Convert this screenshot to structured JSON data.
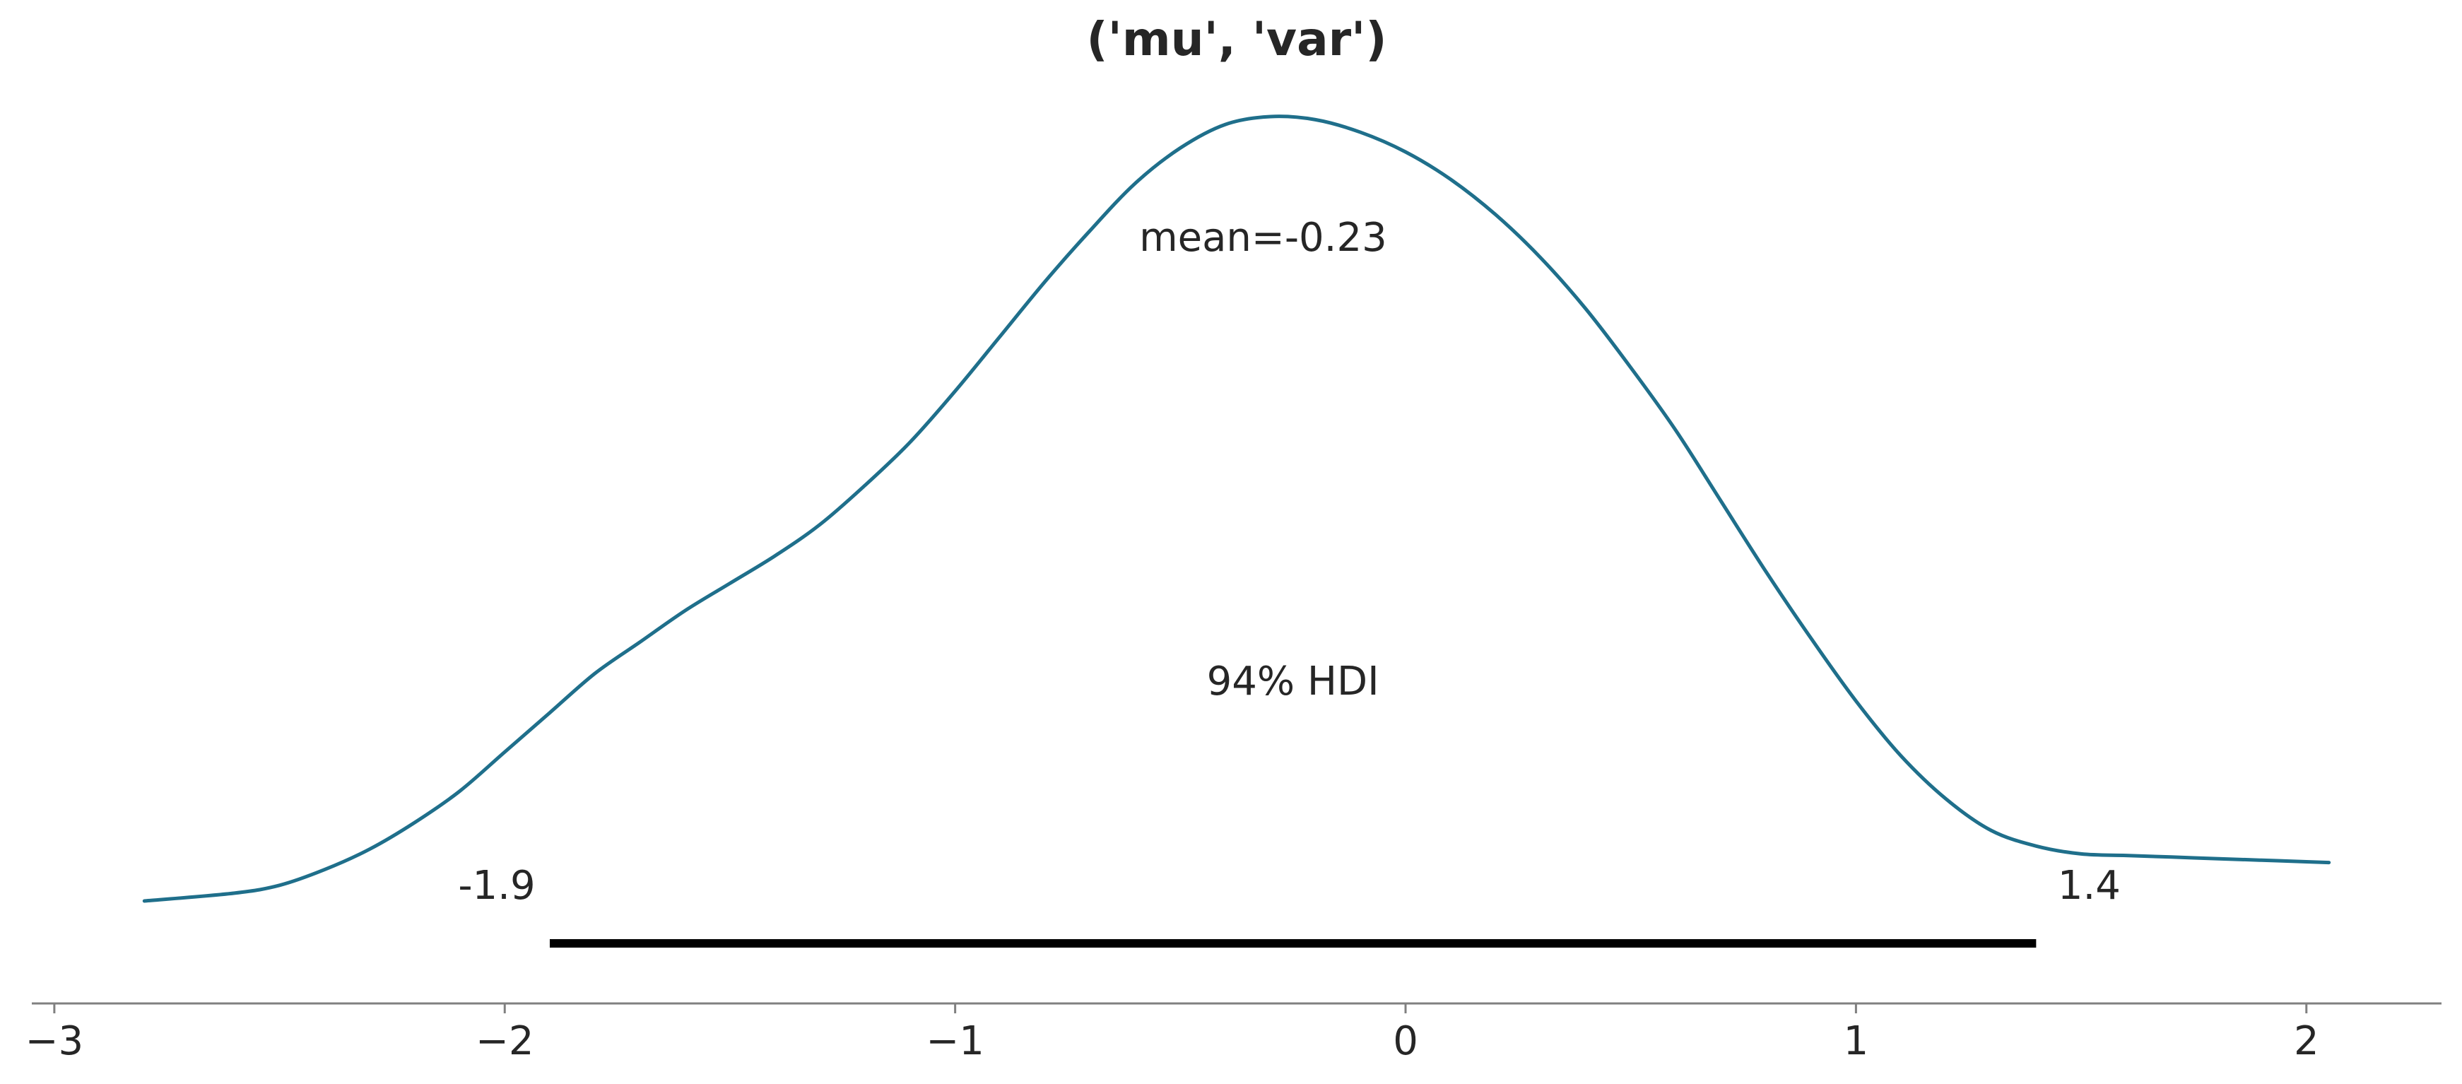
{
  "chart_data": {
    "type": "line",
    "title": "('mu', 'var')",
    "xlabel": "",
    "ylabel": "",
    "xlim": [
      -3.05,
      2.3
    ],
    "ylim": [
      0,
      1
    ],
    "grid": false,
    "y_axis_visible": false,
    "x_ticks": [
      {
        "value": -3,
        "label": "−3"
      },
      {
        "value": -2,
        "label": "−2"
      },
      {
        "value": -1,
        "label": "−1"
      },
      {
        "value": 0,
        "label": "0"
      },
      {
        "value": 1,
        "label": "1"
      },
      {
        "value": 2,
        "label": "2"
      }
    ],
    "series": [
      {
        "color": "#1f6f8b",
        "x": [
          -2.8,
          -2.6,
          -2.5,
          -2.4,
          -2.3,
          -2.2,
          -2.1,
          -2.0,
          -1.9,
          -1.8,
          -1.7,
          -1.6,
          -1.5,
          -1.4,
          -1.3,
          -1.2,
          -1.1,
          -1.0,
          -0.9,
          -0.8,
          -0.7,
          -0.6,
          -0.5,
          -0.4,
          -0.3,
          -0.2,
          -0.1,
          0.0,
          0.1,
          0.2,
          0.3,
          0.4,
          0.5,
          0.6,
          0.7,
          0.8,
          0.9,
          1.0,
          1.1,
          1.2,
          1.3,
          1.4,
          1.5,
          1.6,
          1.7,
          1.8,
          1.9,
          2.0,
          2.05
        ],
        "y": [
          0.0,
          0.01,
          0.02,
          0.04,
          0.066,
          0.1,
          0.14,
          0.19,
          0.24,
          0.29,
          0.33,
          0.37,
          0.405,
          0.44,
          0.48,
          0.53,
          0.585,
          0.65,
          0.72,
          0.79,
          0.855,
          0.915,
          0.96,
          0.99,
          1.0,
          0.996,
          0.98,
          0.955,
          0.92,
          0.875,
          0.82,
          0.755,
          0.68,
          0.6,
          0.51,
          0.42,
          0.335,
          0.255,
          0.185,
          0.13,
          0.09,
          0.07,
          0.06,
          0.058,
          0.056,
          0.054,
          0.052,
          0.05,
          0.049
        ]
      }
    ],
    "point_estimate": {
      "label": "mean=-0.23",
      "value": -0.23
    },
    "hdi": {
      "label": "94% HDI",
      "prob": 0.94,
      "low": -1.9,
      "high": 1.4,
      "low_label": "-1.9",
      "high_label": "1.4",
      "color": "#000000"
    }
  }
}
